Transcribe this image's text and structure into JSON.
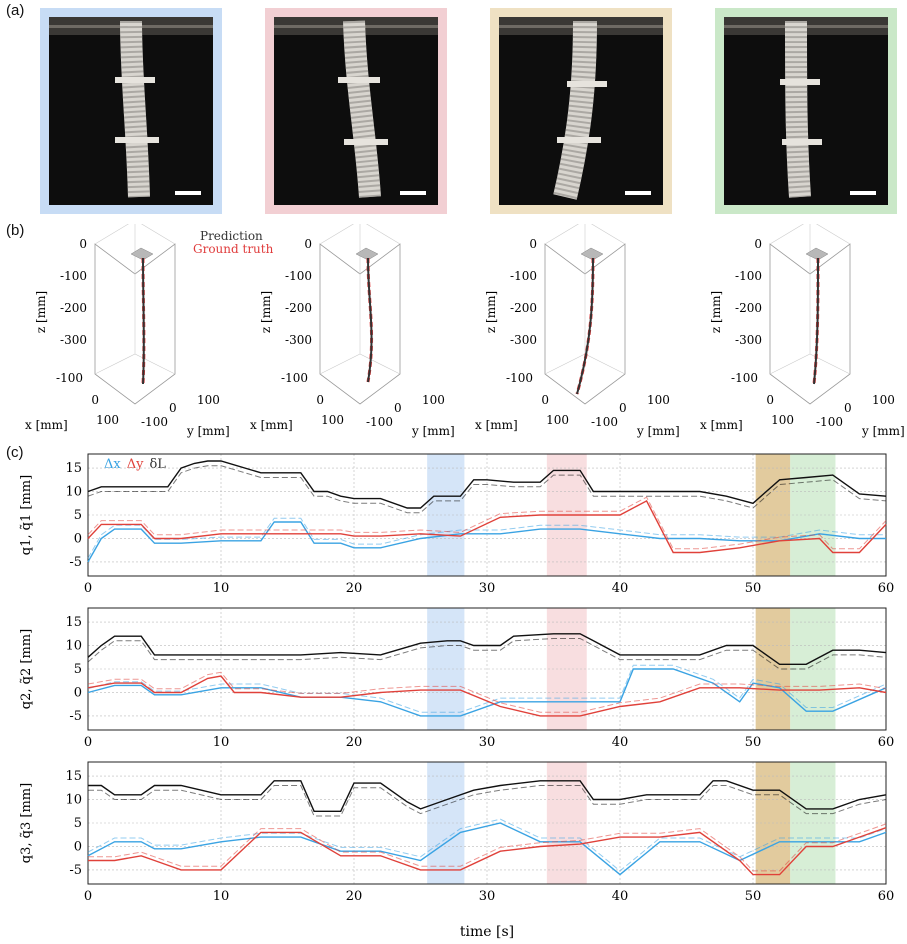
{
  "panel_labels": {
    "a": "(a)",
    "b": "(b)",
    "c": "(c)"
  },
  "photos": [
    {
      "frame_color": "#c7dcf5"
    },
    {
      "frame_color": "#f2cfd3"
    },
    {
      "frame_color": "#efe1c3"
    },
    {
      "frame_color": "#cae8c8"
    }
  ],
  "panel_b": {
    "legend": {
      "prediction": "Prediction",
      "ground_truth": "Ground truth"
    },
    "colors": {
      "prediction": "#333333",
      "ground_truth": "#e03c3c"
    },
    "z_ticks": [
      "0",
      "-100",
      "-200",
      "-300"
    ],
    "x_ticks": [
      "-100",
      "0",
      "100"
    ],
    "y_ticks": [
      "-100",
      "0",
      "100"
    ],
    "z_label": "z [mm]",
    "x_label": "x [mm]",
    "y_label": "y [mm]"
  },
  "chart_data": {
    "type": "line",
    "x_label": "time [s]",
    "x_ticks": [
      0,
      10,
      20,
      30,
      40,
      50,
      60
    ],
    "xlim": [
      0,
      60
    ],
    "ylim": [
      -8,
      18
    ],
    "y_ticks": [
      -5,
      0,
      5,
      10,
      15
    ],
    "legend": {
      "dx": "Δx",
      "dy": "Δy",
      "dl": "δL"
    },
    "colors": {
      "dl": "#111111",
      "dx": "#3aa3e3",
      "dy": "#e0413a"
    },
    "highlights": [
      {
        "x0": 25.5,
        "x1": 28.3,
        "color": "#c7dcf5"
      },
      {
        "x0": 34.5,
        "x1": 37.5,
        "color": "#f6d3d6"
      },
      {
        "x0": 50.2,
        "x1": 52.8,
        "color": "#d8b97e"
      },
      {
        "x0": 52.8,
        "x1": 56.2,
        "color": "#cae8c8"
      }
    ],
    "subplots": [
      {
        "ylabel": "q1, q̃1 [mm]",
        "series": [
          {
            "key": "dl",
            "name": "δL",
            "x": [
              0,
              1,
              2,
              3,
              4,
              5,
              6,
              7,
              8,
              9,
              10,
              13,
              14,
              16,
              17,
              18,
              19,
              20,
              22,
              24,
              25,
              26,
              27,
              28,
              29,
              30,
              32,
              34,
              35,
              37,
              38,
              40,
              42,
              44,
              46,
              48,
              50,
              52,
              54,
              56,
              58,
              60
            ],
            "y": [
              10,
              11,
              11,
              11,
              11,
              11,
              11,
              15,
              16,
              16.5,
              16.5,
              14,
              14,
              14,
              10,
              10,
              9,
              8.5,
              8.5,
              6.5,
              6.5,
              9,
              9,
              9,
              12.5,
              12.5,
              12,
              12,
              14.5,
              14.5,
              10,
              10,
              10,
              10,
              10,
              9,
              7.5,
              12.5,
              13,
              13.5,
              9.5,
              9
            ]
          },
          {
            "key": "dx",
            "name": "Δx",
            "x": [
              0,
              1,
              2,
              4,
              5,
              7,
              10,
              13,
              14,
              16,
              17,
              19,
              20,
              22,
              25,
              28,
              31,
              34,
              37,
              40,
              43,
              46,
              49,
              52,
              55,
              58,
              60
            ],
            "y": [
              -5,
              0,
              2,
              2,
              -1,
              -1,
              -0.5,
              -0.5,
              3.5,
              3.5,
              -1,
              -1,
              -2,
              -2,
              0,
              1,
              1,
              2,
              2,
              1,
              0,
              0,
              -0.5,
              -0.5,
              1,
              0,
              0
            ]
          },
          {
            "key": "dy",
            "name": "Δy",
            "x": [
              0,
              1,
              2,
              4,
              5,
              7,
              10,
              13,
              16,
              19,
              20,
              22,
              25,
              28,
              31,
              34,
              37,
              40,
              42,
              44,
              46,
              49,
              52,
              55,
              56,
              58,
              60
            ],
            "y": [
              0,
              3,
              3,
              3,
              0,
              0,
              1,
              1,
              1,
              1,
              0.5,
              0.5,
              1,
              0.5,
              4.5,
              5,
              5,
              5,
              8,
              -3,
              -3,
              -2,
              -0.5,
              0,
              -3,
              -3,
              3
            ]
          }
        ]
      },
      {
        "ylabel": "q2, q̃2 [mm]",
        "series": [
          {
            "key": "dl",
            "name": "δL",
            "x": [
              0,
              1,
              2,
              4,
              5,
              7,
              10,
              13,
              16,
              19,
              22,
              25,
              27,
              28,
              29,
              31,
              32,
              35,
              37,
              38,
              40,
              42,
              44,
              46,
              48,
              50,
              52,
              54,
              56,
              58,
              60
            ],
            "y": [
              7.5,
              10,
              12,
              12,
              8,
              8,
              8,
              8,
              8,
              8.5,
              8,
              10.5,
              11,
              11,
              10,
              10,
              12,
              12.5,
              12.5,
              11,
              8,
              8,
              8,
              8,
              10,
              10,
              6,
              6,
              9,
              9,
              8.5
            ]
          },
          {
            "key": "dx",
            "name": "Δx",
            "x": [
              0,
              2,
              4,
              5,
              7,
              10,
              13,
              16,
              19,
              22,
              25,
              28,
              31,
              34,
              37,
              40,
              41,
              44,
              47,
              49,
              50,
              52,
              54,
              56,
              60
            ],
            "y": [
              0,
              1.5,
              1.5,
              -0.5,
              -0.5,
              1,
              1,
              -1,
              -1,
              -2,
              -5,
              -5,
              -2,
              -2,
              -2,
              -2,
              5,
              5,
              2,
              -2,
              2,
              1,
              -4,
              -4,
              1
            ]
          },
          {
            "key": "dy",
            "name": "Δy",
            "x": [
              0,
              2,
              4,
              5,
              7,
              9,
              10,
              11,
              13,
              16,
              19,
              22,
              25,
              28,
              31,
              34,
              37,
              40,
              43,
              46,
              49,
              52,
              55,
              58,
              60
            ],
            "y": [
              1,
              2,
              2,
              0,
              0,
              3,
              3.5,
              0,
              0,
              -1,
              -1,
              0,
              0.5,
              0.5,
              -3,
              -5,
              -5,
              -3,
              -2,
              1,
              1,
              0.5,
              0.5,
              1,
              0
            ]
          }
        ]
      },
      {
        "ylabel": "q3, q̃3 [mm]",
        "series": [
          {
            "key": "dl",
            "name": "δL",
            "x": [
              0,
              1,
              2,
              4,
              5,
              7,
              10,
              13,
              14,
              16,
              17,
              19,
              20,
              22,
              24,
              25,
              27,
              29,
              31,
              34,
              37,
              38,
              40,
              42,
              44,
              46,
              47,
              48,
              50,
              52,
              54,
              56,
              58,
              60
            ],
            "y": [
              13,
              13,
              11,
              11,
              13,
              13,
              11,
              11,
              14,
              14,
              7.5,
              7.5,
              13.5,
              13.5,
              9.5,
              8,
              10,
              12,
              13,
              14,
              14,
              10,
              10,
              11,
              11,
              11,
              14,
              14,
              12,
              12,
              8,
              8,
              10,
              11
            ]
          },
          {
            "key": "dx",
            "name": "Δx",
            "x": [
              0,
              2,
              4,
              5,
              7,
              10,
              13,
              16,
              19,
              22,
              25,
              28,
              31,
              34,
              37,
              40,
              43,
              46,
              49,
              52,
              55,
              58,
              60
            ],
            "y": [
              -2,
              1,
              1,
              -0.5,
              -0.5,
              1,
              2,
              2,
              -1,
              -1,
              -3,
              3,
              5,
              1,
              1,
              -6,
              1,
              1,
              -3,
              1,
              1,
              1,
              3
            ]
          },
          {
            "key": "dy",
            "name": "Δy",
            "x": [
              0,
              2,
              4,
              5,
              7,
              10,
              13,
              16,
              19,
              22,
              25,
              28,
              31,
              34,
              37,
              40,
              43,
              46,
              49,
              50,
              52,
              54,
              56,
              58,
              60
            ],
            "y": [
              -3,
              -3,
              -2,
              -3,
              -5,
              -5,
              3,
              3,
              -2,
              -2,
              -5,
              -5,
              -1,
              0,
              0.5,
              2,
              2,
              3,
              -3,
              -6,
              -6,
              0,
              0,
              2,
              4
            ]
          }
        ]
      }
    ]
  }
}
